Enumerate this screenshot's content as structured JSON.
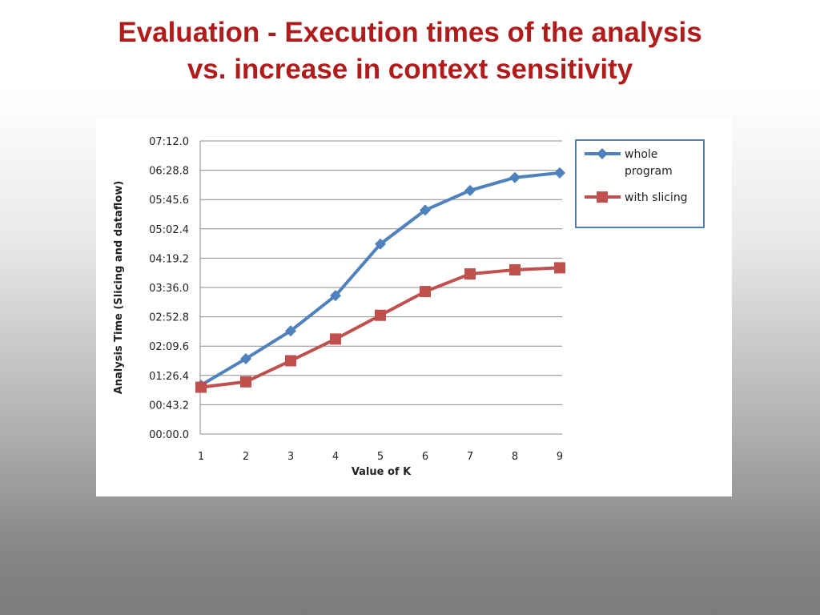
{
  "slide": {
    "title_line1": "Evaluation - Execution times of the analysis",
    "title_line2": "vs. increase in context sensitivity"
  },
  "chart_data": {
    "type": "line",
    "xlabel": "Value of K",
    "ylabel": "Analysis Time (Slicing and dataflow)",
    "y_unit": "seconds (mm:ss.s)",
    "x": [
      1,
      2,
      3,
      4,
      5,
      6,
      7,
      8,
      9
    ],
    "y_ticks": [
      {
        "label": "00:00.0",
        "value": 0
      },
      {
        "label": "00:43.2",
        "value": 43.2
      },
      {
        "label": "01:26.4",
        "value": 86.4
      },
      {
        "label": "02:09.6",
        "value": 129.6
      },
      {
        "label": "02:52.8",
        "value": 172.8
      },
      {
        "label": "03:36.0",
        "value": 216
      },
      {
        "label": "04:19.2",
        "value": 259.2
      },
      {
        "label": "05:02.4",
        "value": 302.4
      },
      {
        "label": "05:45.6",
        "value": 345.6
      },
      {
        "label": "06:28.8",
        "value": 388.8
      },
      {
        "label": "07:12.0",
        "value": 432
      }
    ],
    "ylim": [
      0,
      432
    ],
    "grid": true,
    "legend_position": "top-right",
    "series": [
      {
        "name": "whole program",
        "legend_lines": [
          "whole",
          "program"
        ],
        "color": "#4f81bd",
        "marker": "diamond",
        "values": [
          72,
          111,
          152,
          204,
          280,
          330,
          359,
          378,
          385
        ]
      },
      {
        "name": "with slicing",
        "legend_lines": [
          "with slicing"
        ],
        "color": "#c0504d",
        "marker": "square",
        "values": [
          69,
          77,
          108,
          140,
          175,
          210,
          236,
          242,
          245
        ]
      }
    ]
  }
}
